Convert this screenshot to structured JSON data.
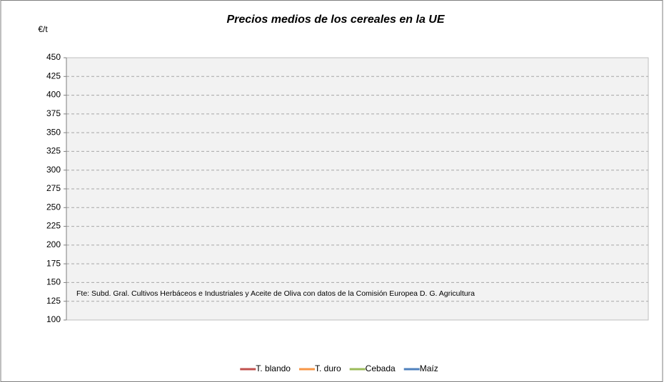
{
  "chart_data": {
    "type": "line",
    "title": "Precios medios de los cereales en la UE",
    "y_label": "€/t",
    "annotation": "Fte: Subd. Gral. Cultivos Herbáceos e Industriales y Aceite de Oliva con datos de la Comisión Europea D. G. Agricultura",
    "categories": [],
    "series": [
      {
        "name": "T. blando",
        "color": "#c0504d",
        "values": []
      },
      {
        "name": "T. duro",
        "color": "#f79646",
        "values": []
      },
      {
        "name": "Cebada",
        "color": "#9bbb59",
        "values": []
      },
      {
        "name": "Maíz",
        "color": "#4f81bd",
        "values": []
      }
    ],
    "ylim": [
      100,
      450
    ],
    "yticks": [
      100,
      125,
      150,
      175,
      200,
      225,
      250,
      275,
      300,
      325,
      350,
      375,
      400,
      425,
      450
    ],
    "grid": true,
    "legend": "bottom"
  }
}
